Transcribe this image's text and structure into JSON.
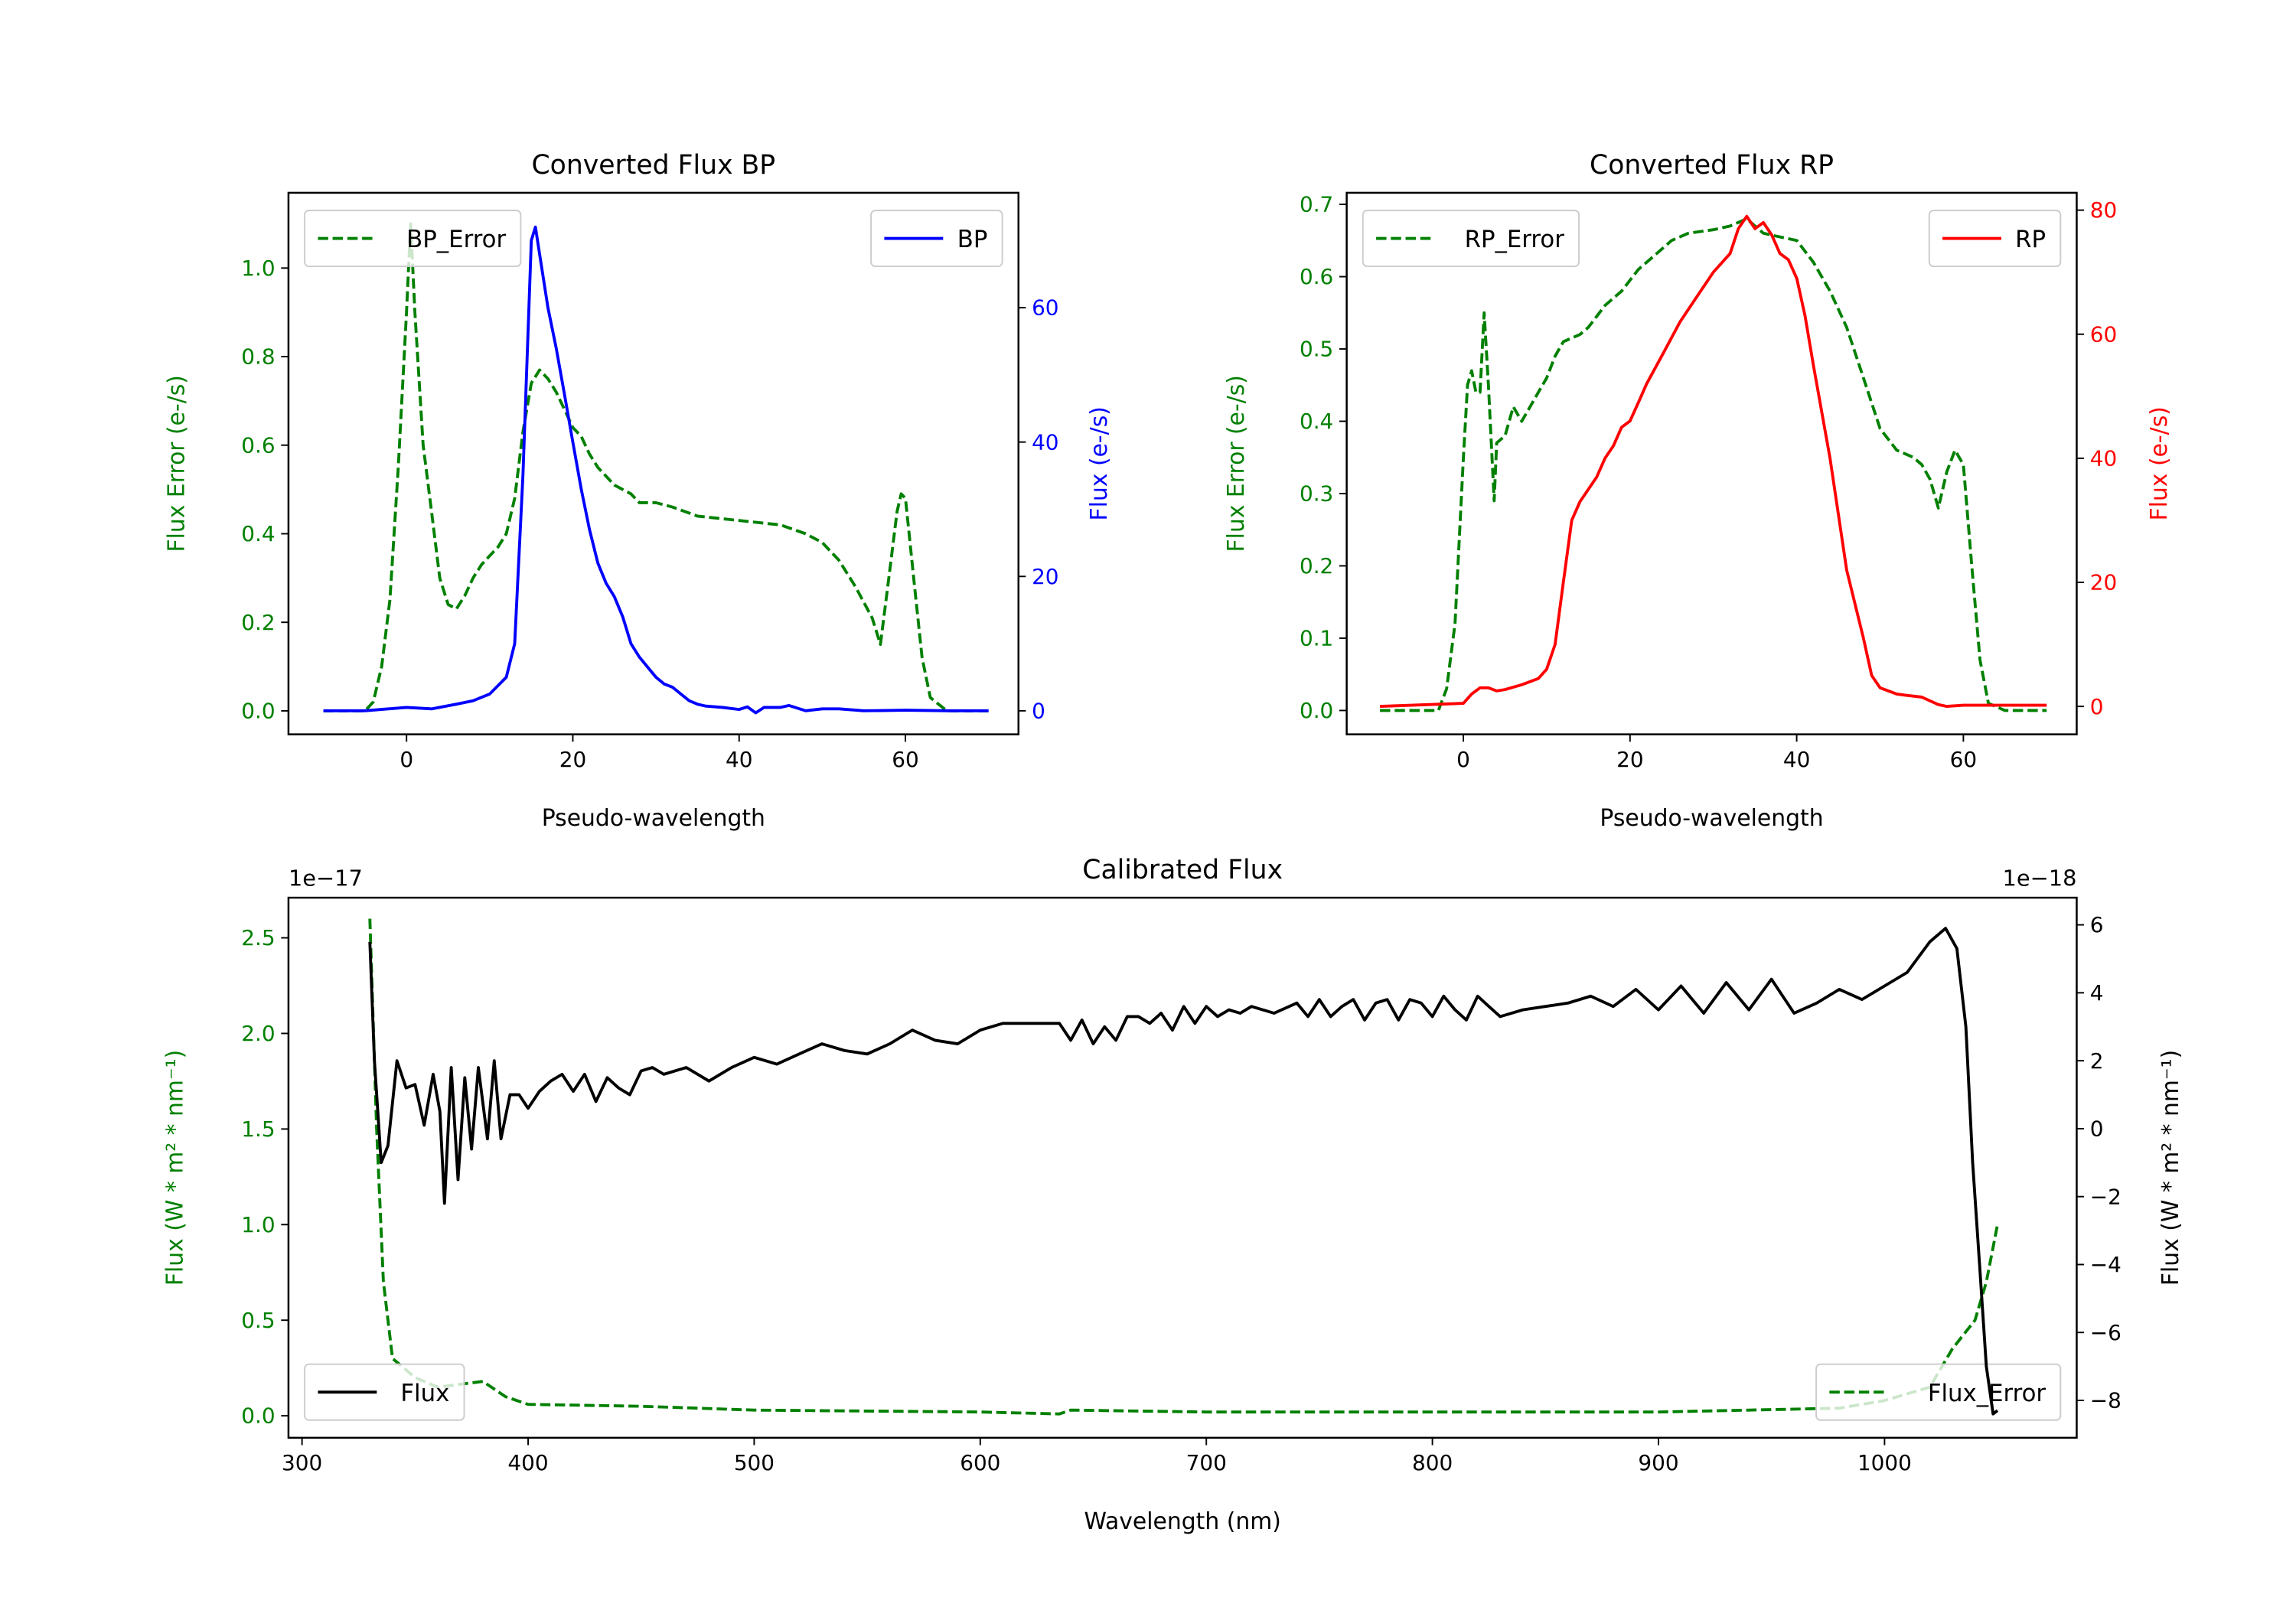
{
  "chart_data": [
    {
      "type": "line",
      "title": "Converted Flux BP",
      "xlabel": "Pseudo-wavelength",
      "ylabel_left": "Flux Error (e-/s)",
      "ylabel_right": "Flux (e-/s)",
      "left_color": "#008000",
      "right_color": "#0000ff",
      "xlim": [
        -14.2,
        73.6
      ],
      "ylim_left": [
        -0.053,
        1.17
      ],
      "ylim_right": [
        -3.5,
        77.1
      ],
      "xticks": [
        0,
        20,
        40,
        60
      ],
      "xtick_labels": [
        "0",
        "20",
        "40",
        "60"
      ],
      "yticks_left": [
        0,
        0.2,
        0.4,
        0.6,
        0.8,
        1.0
      ],
      "ytick_labels_left": [
        "0.0",
        "0.2",
        "0.4",
        "0.6",
        "0.8",
        "1.0"
      ],
      "yticks_right": [
        0,
        20,
        40,
        60
      ],
      "ytick_labels_right": [
        "0",
        "20",
        "40",
        "60"
      ],
      "offset_left": "",
      "offset_right": "",
      "series": [
        {
          "name": "BP_Error",
          "axis": "left",
          "color": "#008000",
          "style": "dashed",
          "legend": "upper-left",
          "x": [
            -10,
            -5,
            -4,
            -3,
            -2,
            -1,
            0,
            0.5,
            1,
            2,
            3,
            4,
            5,
            6,
            7,
            8,
            9,
            10,
            11,
            12,
            13,
            14,
            15,
            16,
            17,
            18,
            19,
            20,
            21,
            22,
            23,
            24,
            25,
            27,
            28,
            30,
            32,
            35,
            40,
            45,
            48,
            50,
            52,
            54,
            56,
            57,
            58,
            59,
            59.5,
            60,
            61,
            62,
            63,
            65,
            70
          ],
          "y": [
            0,
            0,
            0.02,
            0.1,
            0.25,
            0.55,
            0.9,
            1.1,
            0.9,
            0.6,
            0.45,
            0.3,
            0.24,
            0.23,
            0.26,
            0.3,
            0.33,
            0.35,
            0.37,
            0.4,
            0.48,
            0.63,
            0.74,
            0.77,
            0.75,
            0.72,
            0.68,
            0.64,
            0.62,
            0.58,
            0.55,
            0.53,
            0.51,
            0.49,
            0.47,
            0.47,
            0.46,
            0.44,
            0.43,
            0.42,
            0.4,
            0.38,
            0.34,
            0.28,
            0.21,
            0.15,
            0.3,
            0.45,
            0.49,
            0.48,
            0.3,
            0.12,
            0.03,
            0,
            0
          ]
        },
        {
          "name": "BP",
          "axis": "right",
          "color": "#0000ff",
          "style": "solid",
          "legend": "upper-right",
          "x": [
            -10,
            -5,
            0,
            3,
            6,
            8,
            10,
            12,
            13,
            14,
            15,
            15.5,
            16,
            17,
            18,
            19,
            20,
            21,
            22,
            23,
            24,
            25,
            26,
            27,
            28,
            29,
            30,
            31,
            32,
            33,
            34,
            35,
            36,
            38,
            40,
            41,
            42,
            43,
            45,
            46,
            48,
            50,
            52,
            55,
            60,
            65,
            70
          ],
          "y": [
            0,
            0,
            0.5,
            0.3,
            1,
            1.5,
            2.5,
            5,
            10,
            35,
            70,
            72,
            68,
            60,
            54,
            47,
            40,
            33,
            27,
            22,
            19,
            17,
            14,
            10,
            8,
            6.5,
            5,
            4,
            3.5,
            2.5,
            1.5,
            1,
            0.7,
            0.5,
            0.2,
            0.6,
            -0.3,
            0.5,
            0.5,
            0.8,
            0,
            0.3,
            0.3,
            0,
            0.1,
            0,
            0
          ]
        }
      ]
    },
    {
      "type": "line",
      "title": "Converted Flux RP",
      "xlabel": "Pseudo-wavelength",
      "ylabel_left": "Flux Error (e-/s)",
      "ylabel_right": "Flux (e-/s)",
      "left_color": "#008000",
      "right_color": "#ff0000",
      "xlim": [
        -14,
        73.6
      ],
      "ylim_left": [
        -0.033,
        0.716
      ],
      "ylim_right": [
        -4.5,
        82.8
      ],
      "xticks": [
        0,
        20,
        40,
        60
      ],
      "xtick_labels": [
        "0",
        "20",
        "40",
        "60"
      ],
      "yticks_left": [
        0,
        0.1,
        0.2,
        0.3,
        0.4,
        0.5,
        0.6,
        0.7
      ],
      "ytick_labels_left": [
        "0.0",
        "0.1",
        "0.2",
        "0.3",
        "0.4",
        "0.5",
        "0.6",
        "0.7"
      ],
      "yticks_right": [
        0,
        20,
        40,
        60,
        80
      ],
      "ytick_labels_right": [
        "0",
        "20",
        "40",
        "60",
        "80"
      ],
      "offset_left": "",
      "offset_right": "",
      "series": [
        {
          "name": "RP_Error",
          "axis": "left",
          "color": "#008000",
          "style": "dashed",
          "legend": "upper-left",
          "x": [
            -10,
            -3,
            -2,
            -1,
            0,
            0.5,
            1,
            1.5,
            2,
            2.5,
            3,
            3.7,
            4,
            5,
            6,
            7,
            8,
            9,
            10,
            11,
            12,
            14,
            15,
            17,
            19,
            21,
            23,
            25,
            27,
            30,
            32,
            34,
            36,
            38,
            40,
            42,
            44,
            46,
            48,
            50,
            52,
            54,
            55,
            56,
            57,
            58,
            59,
            60,
            61,
            62,
            63,
            65,
            70
          ],
          "y": [
            0,
            0,
            0.03,
            0.12,
            0.35,
            0.45,
            0.47,
            0.44,
            0.44,
            0.55,
            0.45,
            0.29,
            0.37,
            0.38,
            0.42,
            0.4,
            0.42,
            0.44,
            0.46,
            0.49,
            0.51,
            0.52,
            0.53,
            0.56,
            0.58,
            0.61,
            0.63,
            0.65,
            0.66,
            0.665,
            0.67,
            0.68,
            0.66,
            0.655,
            0.65,
            0.62,
            0.58,
            0.53,
            0.46,
            0.39,
            0.36,
            0.35,
            0.34,
            0.32,
            0.28,
            0.33,
            0.36,
            0.34,
            0.2,
            0.07,
            0.01,
            0,
            0
          ]
        },
        {
          "name": "RP",
          "axis": "right",
          "color": "#ff0000",
          "style": "solid",
          "legend": "upper-right",
          "x": [
            -10,
            0,
            1,
            2,
            3,
            4,
            5,
            7,
            9,
            10,
            11,
            12,
            13,
            14,
            15,
            16,
            17,
            18,
            19,
            20,
            21,
            22,
            24,
            26,
            28,
            30,
            32,
            33,
            34,
            35,
            36,
            37,
            38,
            39,
            40,
            41,
            42,
            44,
            46,
            48,
            49,
            50,
            52,
            53,
            55,
            57,
            58,
            60,
            70
          ],
          "y": [
            0,
            0.5,
            2,
            3,
            3,
            2.5,
            2.7,
            3.5,
            4.5,
            6,
            10,
            20,
            30,
            33,
            35,
            37,
            40,
            42,
            45,
            46,
            49,
            52,
            57,
            62,
            66,
            70,
            73,
            77,
            79,
            77,
            78,
            76,
            73,
            72,
            69,
            63,
            55,
            40,
            22,
            11,
            5,
            3,
            2,
            1.8,
            1.5,
            0.3,
            0,
            0.2,
            0.2
          ]
        }
      ]
    },
    {
      "type": "line",
      "title": "Calibrated Flux",
      "xlabel": "Wavelength (nm)",
      "ylabel_left": "Flux (W * m² * nm⁻¹)",
      "ylabel_right": "Flux (W * m² * nm⁻¹)",
      "left_color": "#008000",
      "right_color": "#000000",
      "xlim": [
        294,
        1085
      ],
      "ylim_left": [
        -0.115,
        2.71
      ],
      "ylim_right": [
        -9.1,
        6.8
      ],
      "xticks": [
        300,
        400,
        500,
        600,
        700,
        800,
        900,
        1000
      ],
      "xtick_labels": [
        "300",
        "400",
        "500",
        "600",
        "700",
        "800",
        "900",
        "1000"
      ],
      "yticks_left": [
        0,
        0.5,
        1.0,
        1.5,
        2.0,
        2.5
      ],
      "ytick_labels_left": [
        "0.0",
        "0.5",
        "1.0",
        "1.5",
        "2.0",
        "2.5"
      ],
      "yticks_right": [
        -8,
        -6,
        -4,
        -2,
        0,
        2,
        4,
        6
      ],
      "ytick_labels_right": [
        "−8",
        "−6",
        "−4",
        "−2",
        "0",
        "2",
        "4",
        "6"
      ],
      "offset_left": "1e−17",
      "offset_right": "1e−18",
      "series": [
        {
          "name": "Flux_Error",
          "axis": "left",
          "color": "#008000",
          "style": "dashed",
          "legend": "lower-right",
          "x": [
            330,
            333,
            336,
            340,
            350,
            360,
            380,
            390,
            400,
            450,
            500,
            600,
            635,
            640,
            700,
            900,
            980,
            1000,
            1020,
            1030,
            1040,
            1045,
            1050
          ],
          "y": [
            2.6,
            1.5,
            0.7,
            0.3,
            0.2,
            0.15,
            0.18,
            0.1,
            0.06,
            0.05,
            0.03,
            0.02,
            0.01,
            0.03,
            0.02,
            0.02,
            0.04,
            0.08,
            0.15,
            0.35,
            0.5,
            0.7,
            1.0
          ]
        },
        {
          "name": "Flux",
          "axis": "right",
          "color": "#000000",
          "style": "solid",
          "legend": "lower-left",
          "x": [
            330,
            332,
            335,
            338,
            342,
            346,
            350,
            354,
            358,
            361,
            363,
            366,
            369,
            372,
            375,
            378,
            382,
            385,
            388,
            392,
            396,
            400,
            405,
            410,
            415,
            420,
            425,
            430,
            435,
            440,
            445,
            450,
            455,
            460,
            470,
            480,
            490,
            500,
            510,
            520,
            530,
            540,
            550,
            560,
            570,
            580,
            590,
            600,
            610,
            625,
            635,
            640,
            645,
            650,
            655,
            660,
            665,
            670,
            675,
            680,
            685,
            690,
            695,
            700,
            705,
            710,
            715,
            720,
            730,
            740,
            745,
            750,
            755,
            760,
            765,
            770,
            775,
            780,
            785,
            790,
            795,
            800,
            805,
            810,
            815,
            820,
            825,
            830,
            840,
            850,
            860,
            870,
            880,
            890,
            900,
            910,
            920,
            930,
            940,
            950,
            960,
            970,
            980,
            990,
            1000,
            1010,
            1020,
            1027,
            1032,
            1036,
            1039,
            1042,
            1045,
            1048,
            1050
          ],
          "y": [
            5.5,
            2,
            -1,
            -0.5,
            2,
            1.2,
            1.3,
            0.1,
            1.6,
            0.5,
            -2.2,
            1.8,
            -1.5,
            1.5,
            -0.6,
            1.8,
            -0.3,
            2,
            -0.3,
            1,
            1,
            0.6,
            1.1,
            1.4,
            1.6,
            1.1,
            1.6,
            0.8,
            1.5,
            1.2,
            1,
            1.7,
            1.8,
            1.6,
            1.8,
            1.4,
            1.8,
            2.1,
            1.9,
            2.2,
            2.5,
            2.3,
            2.2,
            2.5,
            2.9,
            2.6,
            2.5,
            2.9,
            3.1,
            3.1,
            3.1,
            2.6,
            3.2,
            2.5,
            3.0,
            2.6,
            3.3,
            3.3,
            3.1,
            3.4,
            2.9,
            3.6,
            3.1,
            3.6,
            3.3,
            3.5,
            3.4,
            3.6,
            3.4,
            3.7,
            3.3,
            3.8,
            3.3,
            3.6,
            3.8,
            3.2,
            3.7,
            3.8,
            3.2,
            3.8,
            3.7,
            3.3,
            3.9,
            3.5,
            3.2,
            3.9,
            3.6,
            3.3,
            3.5,
            3.6,
            3.7,
            3.9,
            3.6,
            4.1,
            3.5,
            4.2,
            3.4,
            4.3,
            3.5,
            4.4,
            3.4,
            3.7,
            4.1,
            3.8,
            4.2,
            4.6,
            5.5,
            5.9,
            5.3,
            3.0,
            -1,
            -4,
            -7,
            -8.4,
            -8.3
          ]
        }
      ]
    }
  ]
}
